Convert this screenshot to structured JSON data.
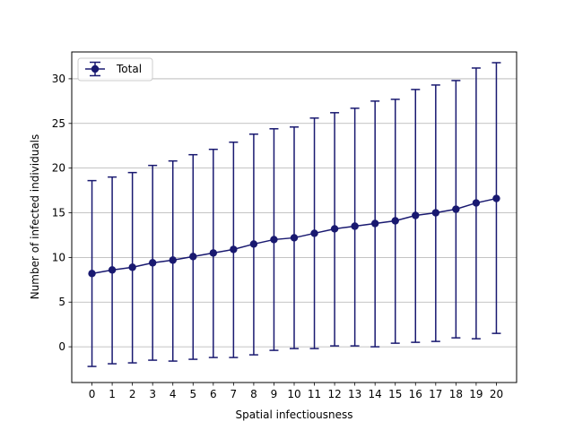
{
  "chart_data": {
    "type": "line",
    "title": "",
    "xlabel": "Spatial infectiousness",
    "ylabel": "Number of infected individuals",
    "xlim": [
      -1,
      21
    ],
    "ylim": [
      -4,
      33
    ],
    "x_ticks": [
      0,
      1,
      2,
      3,
      4,
      5,
      6,
      7,
      8,
      9,
      10,
      11,
      12,
      13,
      14,
      15,
      16,
      17,
      18,
      19,
      20
    ],
    "y_ticks": [
      0,
      5,
      10,
      15,
      20,
      25,
      30
    ],
    "grid": "horizontal",
    "legend_position": "top-left",
    "series": [
      {
        "name": "Total",
        "color": "#191970",
        "marker": "circle",
        "error_bars": true,
        "x": [
          0,
          1,
          2,
          3,
          4,
          5,
          6,
          7,
          8,
          9,
          10,
          11,
          12,
          13,
          14,
          15,
          16,
          17,
          18,
          19,
          20
        ],
        "y": [
          8.2,
          8.6,
          8.9,
          9.4,
          9.7,
          10.1,
          10.5,
          10.9,
          11.5,
          12.0,
          12.2,
          12.7,
          13.2,
          13.5,
          13.8,
          14.1,
          14.7,
          15.0,
          15.4,
          16.1,
          16.6
        ],
        "yerr_low": [
          -2.2,
          -1.9,
          -1.8,
          -1.5,
          -1.6,
          -1.4,
          -1.2,
          -1.2,
          -0.9,
          -0.4,
          -0.2,
          -0.2,
          0.1,
          0.1,
          0.0,
          0.4,
          0.5,
          0.6,
          1.0,
          0.9,
          1.5
        ],
        "yerr_high": [
          18.6,
          19.0,
          19.5,
          20.3,
          20.8,
          21.5,
          22.1,
          22.9,
          23.8,
          24.4,
          24.6,
          25.6,
          26.2,
          26.7,
          27.5,
          27.7,
          28.8,
          29.3,
          29.8,
          31.2,
          31.8
        ]
      }
    ]
  }
}
